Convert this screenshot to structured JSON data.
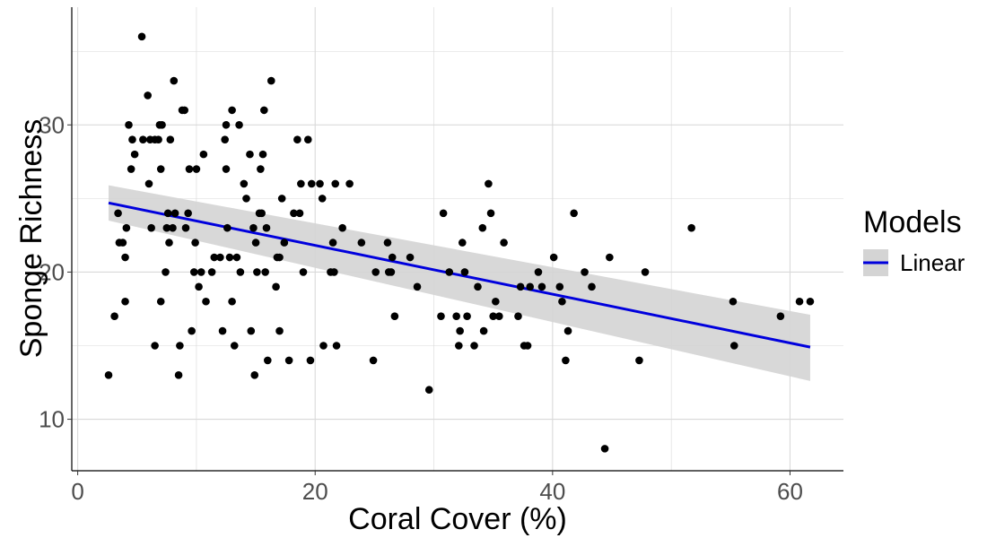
{
  "chart_data": {
    "type": "scatter",
    "xlabel": "Coral Cover (%)",
    "ylabel": "Sponge Richness",
    "xlim": [
      -0.5,
      64.5
    ],
    "ylim": [
      6.5,
      38.0
    ],
    "x_ticks": [
      0,
      20,
      40,
      60
    ],
    "y_ticks": [
      10,
      20,
      30
    ],
    "grid": true,
    "legend": {
      "title": "Models",
      "placement": "right",
      "entries": [
        "Linear"
      ]
    },
    "colors": {
      "points": "#000000",
      "fit_line": "#0000dd",
      "ribbon": "#d4d4d4",
      "grid": "#d9d9d9"
    },
    "points": [
      [
        2.6,
        13
      ],
      [
        3.1,
        17
      ],
      [
        3.4,
        24
      ],
      [
        3.5,
        22
      ],
      [
        3.8,
        22
      ],
      [
        4.0,
        21
      ],
      [
        4.1,
        23
      ],
      [
        4.0,
        18
      ],
      [
        4.3,
        30
      ],
      [
        4.5,
        27
      ],
      [
        4.6,
        29
      ],
      [
        4.8,
        28
      ],
      [
        5.4,
        36
      ],
      [
        5.5,
        29
      ],
      [
        5.9,
        32
      ],
      [
        6.0,
        26
      ],
      [
        6.1,
        29
      ],
      [
        6.2,
        23
      ],
      [
        6.5,
        29
      ],
      [
        6.5,
        15
      ],
      [
        6.8,
        29
      ],
      [
        6.9,
        30
      ],
      [
        7.0,
        27
      ],
      [
        7.1,
        30
      ],
      [
        7.0,
        18
      ],
      [
        7.4,
        20
      ],
      [
        7.5,
        23
      ],
      [
        7.6,
        24
      ],
      [
        7.7,
        22
      ],
      [
        7.8,
        29
      ],
      [
        8.0,
        23
      ],
      [
        8.1,
        33
      ],
      [
        8.2,
        24
      ],
      [
        8.5,
        13
      ],
      [
        8.6,
        15
      ],
      [
        8.8,
        31
      ],
      [
        9.0,
        31
      ],
      [
        9.1,
        23
      ],
      [
        9.3,
        24
      ],
      [
        9.4,
        27
      ],
      [
        9.6,
        16
      ],
      [
        9.8,
        20
      ],
      [
        9.9,
        22
      ],
      [
        10.0,
        27
      ],
      [
        10.2,
        19
      ],
      [
        10.4,
        20
      ],
      [
        10.6,
        28
      ],
      [
        10.8,
        18
      ],
      [
        11.3,
        20
      ],
      [
        11.5,
        21
      ],
      [
        12.0,
        21
      ],
      [
        12.2,
        16
      ],
      [
        12.4,
        29
      ],
      [
        12.5,
        30
      ],
      [
        12.5,
        27
      ],
      [
        12.6,
        23
      ],
      [
        12.8,
        21
      ],
      [
        13.0,
        18
      ],
      [
        13.0,
        31
      ],
      [
        13.2,
        15
      ],
      [
        13.4,
        21
      ],
      [
        13.6,
        30
      ],
      [
        13.7,
        20
      ],
      [
        14.0,
        26
      ],
      [
        14.2,
        25
      ],
      [
        14.5,
        28
      ],
      [
        14.6,
        16
      ],
      [
        14.8,
        23
      ],
      [
        14.9,
        13
      ],
      [
        15.0,
        22
      ],
      [
        15.1,
        20
      ],
      [
        15.3,
        24
      ],
      [
        15.4,
        27
      ],
      [
        15.5,
        24
      ],
      [
        15.6,
        28
      ],
      [
        15.7,
        31
      ],
      [
        15.8,
        20
      ],
      [
        15.9,
        23
      ],
      [
        16.0,
        14
      ],
      [
        16.3,
        33
      ],
      [
        16.7,
        19
      ],
      [
        16.8,
        21
      ],
      [
        17.0,
        16
      ],
      [
        17.0,
        21
      ],
      [
        17.2,
        25
      ],
      [
        17.4,
        22
      ],
      [
        17.8,
        14
      ],
      [
        18.2,
        24
      ],
      [
        18.5,
        29
      ],
      [
        18.7,
        24
      ],
      [
        18.8,
        26
      ],
      [
        19.0,
        20
      ],
      [
        19.4,
        29
      ],
      [
        19.6,
        14
      ],
      [
        19.7,
        26
      ],
      [
        20.4,
        26
      ],
      [
        20.6,
        25
      ],
      [
        20.7,
        15
      ],
      [
        21.3,
        20
      ],
      [
        21.5,
        22
      ],
      [
        21.6,
        20
      ],
      [
        21.7,
        26
      ],
      [
        21.8,
        15
      ],
      [
        22.3,
        23
      ],
      [
        22.9,
        26
      ],
      [
        23.9,
        22
      ],
      [
        24.9,
        14
      ],
      [
        25.1,
        20
      ],
      [
        26.1,
        22
      ],
      [
        26.2,
        20
      ],
      [
        26.4,
        20
      ],
      [
        26.5,
        21
      ],
      [
        26.7,
        17
      ],
      [
        28.0,
        21
      ],
      [
        28.6,
        19
      ],
      [
        29.6,
        12
      ],
      [
        30.6,
        17
      ],
      [
        30.8,
        24
      ],
      [
        31.3,
        20
      ],
      [
        31.9,
        17
      ],
      [
        32.1,
        15
      ],
      [
        32.2,
        16
      ],
      [
        32.4,
        22
      ],
      [
        32.6,
        20
      ],
      [
        32.8,
        17
      ],
      [
        33.4,
        15
      ],
      [
        33.7,
        19
      ],
      [
        34.1,
        23
      ],
      [
        34.2,
        16
      ],
      [
        34.6,
        26
      ],
      [
        34.8,
        24
      ],
      [
        35.0,
        17
      ],
      [
        35.2,
        18
      ],
      [
        35.5,
        17
      ],
      [
        35.9,
        22
      ],
      [
        37.1,
        17
      ],
      [
        37.3,
        19
      ],
      [
        37.6,
        15
      ],
      [
        37.9,
        15
      ],
      [
        38.1,
        19
      ],
      [
        38.8,
        20
      ],
      [
        39.1,
        19
      ],
      [
        40.1,
        21
      ],
      [
        40.6,
        19
      ],
      [
        40.8,
        18
      ],
      [
        41.1,
        14
      ],
      [
        41.3,
        16
      ],
      [
        41.8,
        24
      ],
      [
        42.7,
        20
      ],
      [
        43.3,
        19
      ],
      [
        44.4,
        8
      ],
      [
        44.8,
        21
      ],
      [
        47.3,
        14
      ],
      [
        47.8,
        20
      ],
      [
        51.7,
        23
      ],
      [
        55.2,
        18
      ],
      [
        55.3,
        15
      ],
      [
        59.2,
        17
      ],
      [
        60.8,
        18
      ],
      [
        61.7,
        18
      ]
    ],
    "fit": {
      "x": [
        2.6,
        61.7
      ],
      "y": [
        24.7,
        14.9
      ],
      "ci_lower": [
        23.5,
        12.6
      ],
      "ci_upper": [
        25.9,
        17.1
      ]
    }
  }
}
